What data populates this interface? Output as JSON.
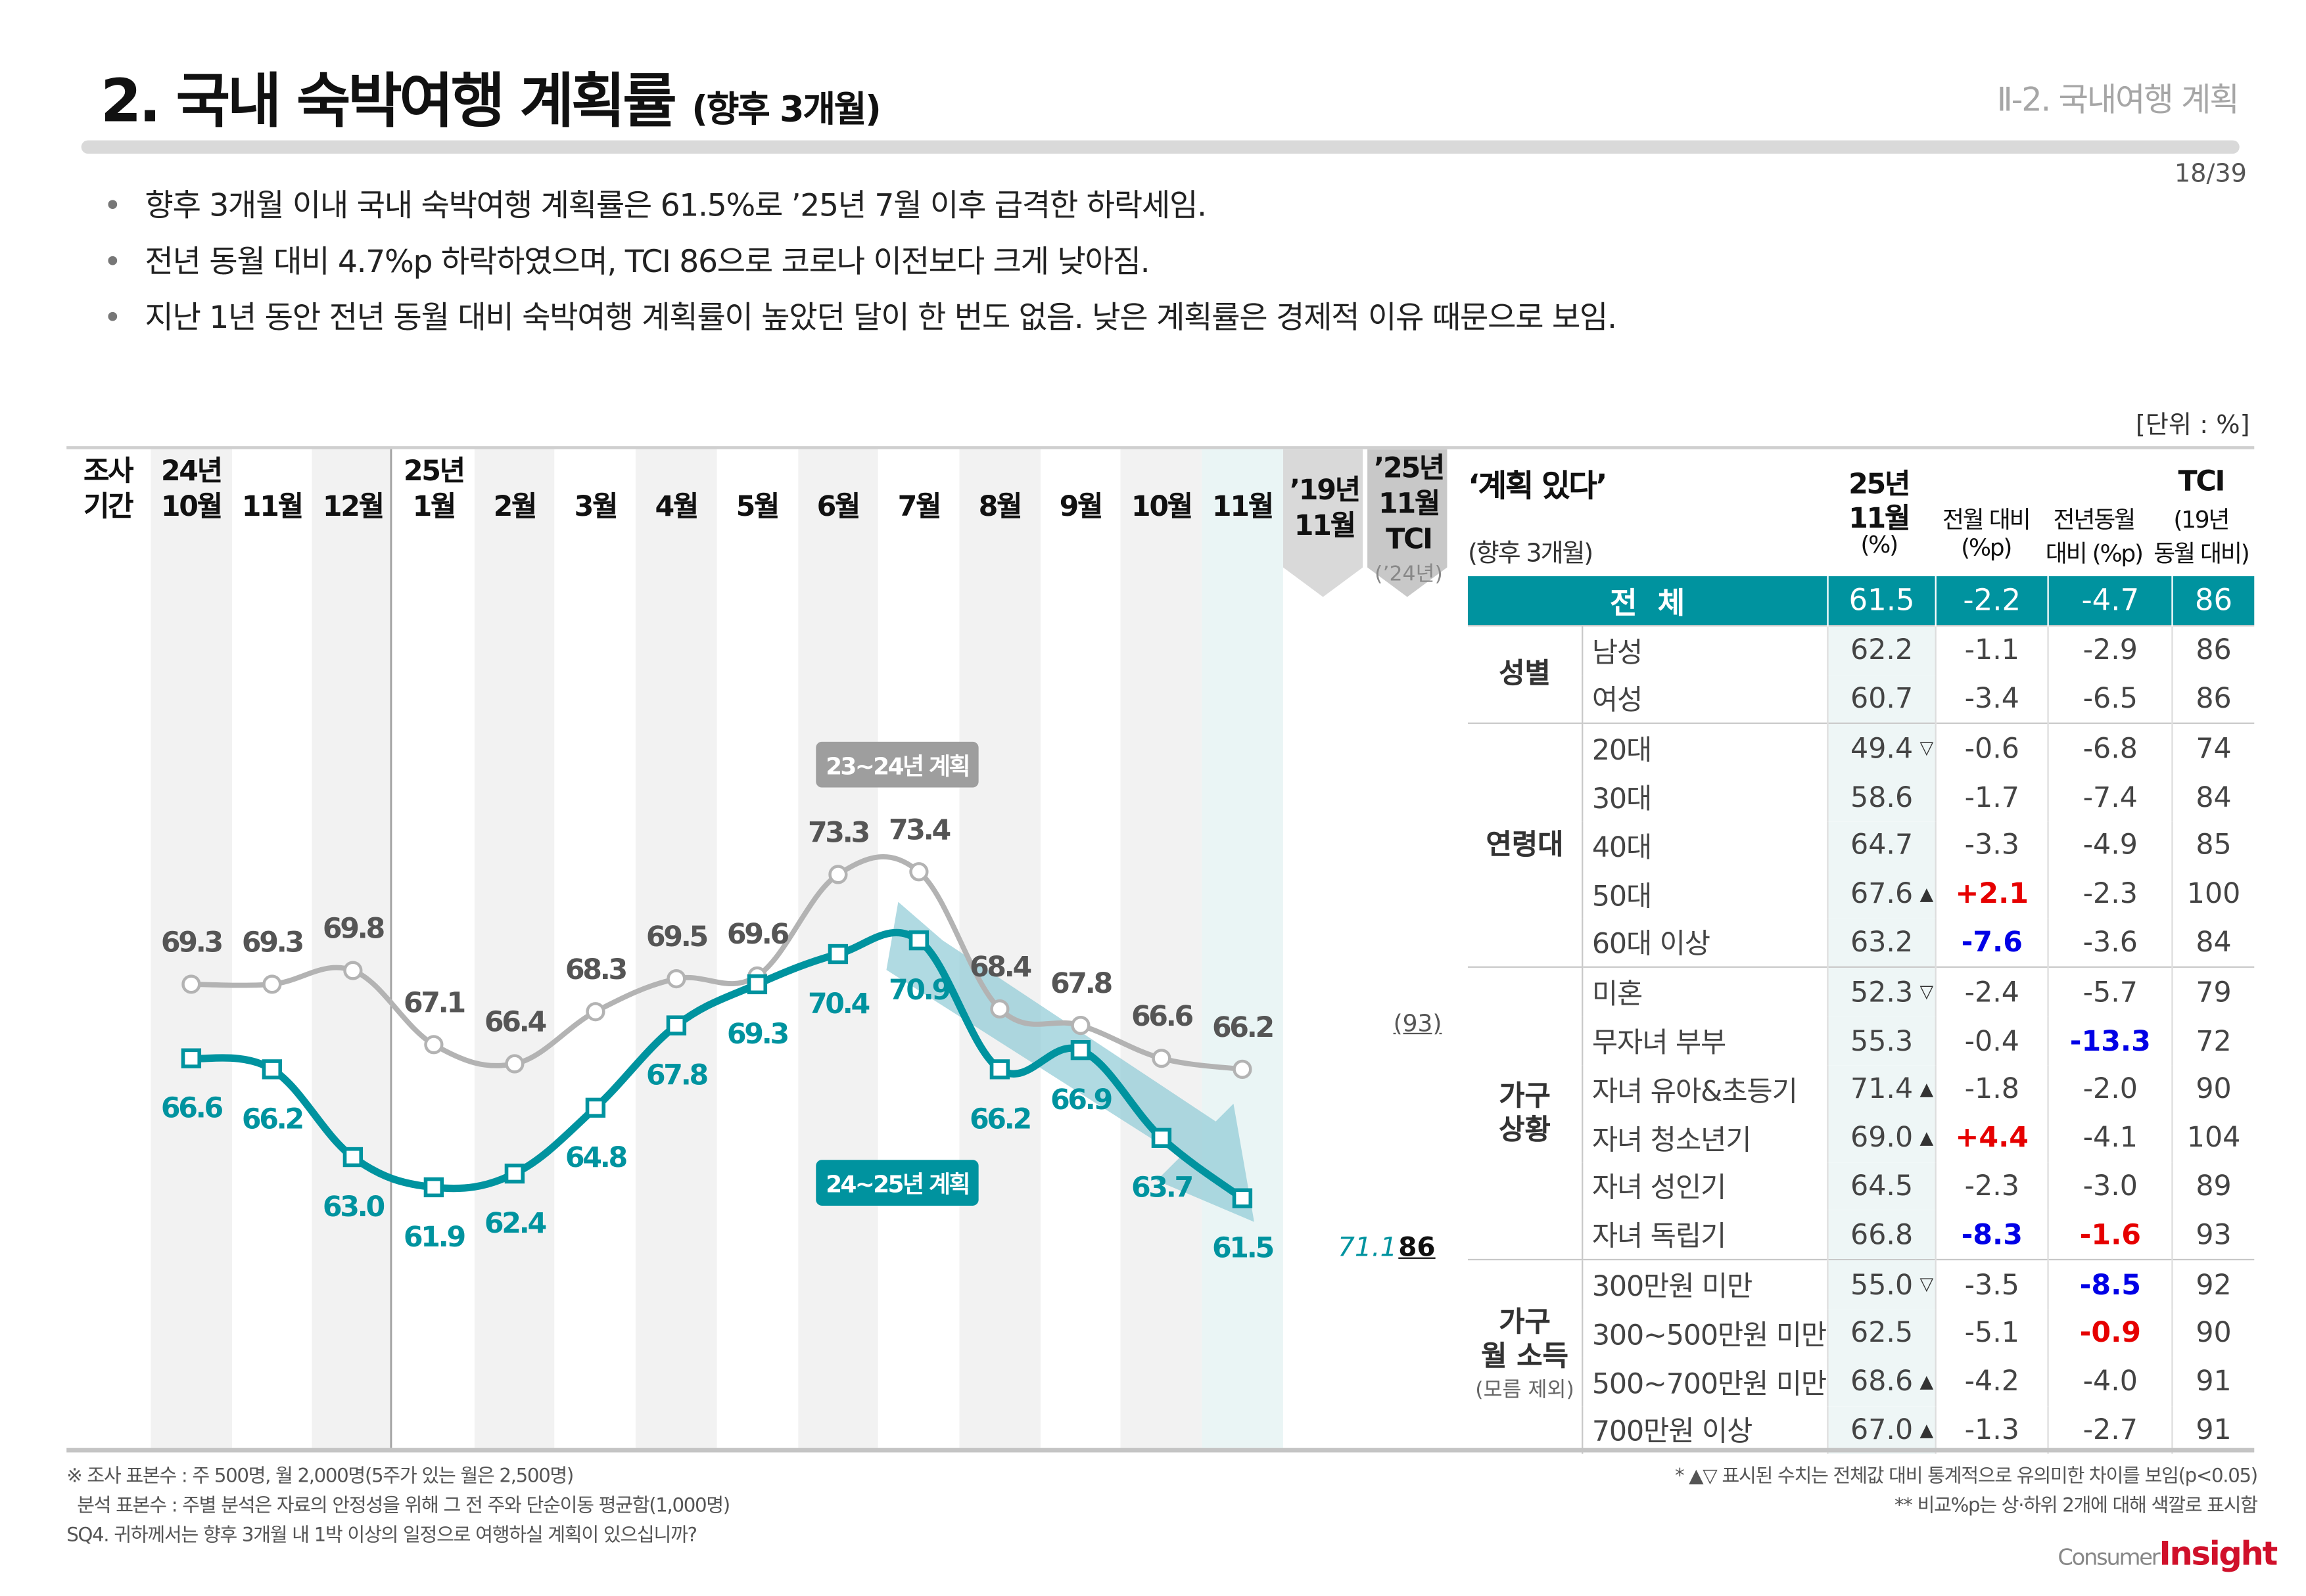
{
  "header": {
    "title": "2. 국내 숙박여행 계획률",
    "title_suffix": "(향후 3개월)",
    "section": "Ⅱ-2. 국내여행 계획",
    "page": "18/39"
  },
  "bullets": [
    "향후 3개월 이내 국내 숙박여행 계획률은 61.5%로 ’25년 7월 이후 급격한 하락세임.",
    "전년 동월 대비 4.7%p 하락하였으며, TCI 86으로 코로나 이전보다 크게 낮아짐.",
    "지난 1년 동안 전년 동월 대비 숙박여행 계획률이 높았던 달이 한 번도 없음. 낮은 계획률은 경제적 이유 때문으로 보임."
  ],
  "unit": "[단위 : %]",
  "colors": {
    "teal": "#00939f",
    "gray_line": "#b3b3b3",
    "red": "#e60000",
    "blue": "#0000e6"
  },
  "chart_data": {
    "type": "line",
    "period_label": [
      "조사",
      "기간"
    ],
    "year_labels": [
      {
        "index": 0,
        "label": "24년"
      },
      {
        "index": 3,
        "label": "25년"
      }
    ],
    "categories": [
      "10월",
      "11월",
      "12월",
      "1월",
      "2월",
      "3월",
      "4월",
      "5월",
      "6월",
      "7월",
      "8월",
      "9월",
      "10월",
      "11월"
    ],
    "series": [
      {
        "name": "23~24년 계획",
        "color": "#b3b3b3",
        "marker": "circle",
        "values": [
          69.3,
          69.3,
          69.8,
          67.1,
          66.4,
          68.3,
          69.5,
          69.6,
          73.3,
          73.4,
          68.4,
          67.8,
          66.6,
          66.2
        ]
      },
      {
        "name": "24~25년 계획",
        "color": "#00939f",
        "marker": "square",
        "values": [
          66.6,
          66.2,
          63.0,
          61.9,
          62.4,
          64.8,
          67.8,
          69.3,
          70.4,
          70.9,
          66.2,
          66.9,
          63.7,
          61.5
        ]
      }
    ],
    "ylim": [
      58,
      76
    ],
    "trend_arrow": {
      "from": "7월",
      "to": "11월"
    },
    "extra_columns": [
      {
        "header": [
          "’19년",
          "11월"
        ],
        "value": "71.1"
      },
      {
        "header": [
          "’25년",
          "11월",
          "TCI"
        ],
        "subheader": "(’24년)",
        "value": "86",
        "ref": "(93)"
      }
    ]
  },
  "table": {
    "title": "‘계획 있다’",
    "subtitle": "(향후 3개월)",
    "columns": [
      [
        "25년",
        "11월",
        "(%)"
      ],
      [
        "전월 대비",
        "(%p)"
      ],
      [
        "전년동월",
        "대비 (%p)"
      ],
      [
        "TCI",
        "(19년",
        "동월 대비)"
      ]
    ],
    "total": {
      "label": "전  체",
      "values": [
        "61.5",
        "-2.2",
        "-4.7",
        "86"
      ]
    },
    "groups": [
      {
        "label": [
          "성별"
        ],
        "rows": [
          {
            "label": "남성",
            "v": "62.2",
            "m": "",
            "mom": "-1.1",
            "yoy": "-2.9",
            "tci": "86"
          },
          {
            "label": "여성",
            "v": "60.7",
            "m": "",
            "mom": "-3.4",
            "yoy": "-6.5",
            "tci": "86"
          }
        ]
      },
      {
        "label": [
          "연령대"
        ],
        "rows": [
          {
            "label": "20대",
            "v": "49.4",
            "m": "▽",
            "mom": "-0.6",
            "yoy": "-6.8",
            "tci": "74"
          },
          {
            "label": "30대",
            "v": "58.6",
            "m": "",
            "mom": "-1.7",
            "yoy": "-7.4",
            "tci": "84"
          },
          {
            "label": "40대",
            "v": "64.7",
            "m": "",
            "mom": "-3.3",
            "yoy": "-4.9",
            "tci": "85"
          },
          {
            "label": "50대",
            "v": "67.6",
            "m": "▲",
            "mom": "+2.1",
            "mom_c": "red",
            "yoy": "-2.3",
            "tci": "100"
          },
          {
            "label": "60대 이상",
            "v": "63.2",
            "m": "",
            "mom": "-7.6",
            "mom_c": "blue",
            "yoy": "-3.6",
            "tci": "84"
          }
        ]
      },
      {
        "label": [
          "가구",
          "상황"
        ],
        "rows": [
          {
            "label": "미혼",
            "v": "52.3",
            "m": "▽",
            "mom": "-2.4",
            "yoy": "-5.7",
            "tci": "79"
          },
          {
            "label": "무자녀 부부",
            "v": "55.3",
            "m": "",
            "mom": "-0.4",
            "yoy": "-13.3",
            "yoy_c": "blue",
            "tci": "72"
          },
          {
            "label": "자녀 유아&초등기",
            "v": "71.4",
            "m": "▲",
            "mom": "-1.8",
            "yoy": "-2.0",
            "tci": "90"
          },
          {
            "label": "자녀 청소년기",
            "v": "69.0",
            "m": "▲",
            "mom": "+4.4",
            "mom_c": "red",
            "yoy": "-4.1",
            "tci": "104"
          },
          {
            "label": "자녀 성인기",
            "v": "64.5",
            "m": "",
            "mom": "-2.3",
            "yoy": "-3.0",
            "tci": "89"
          },
          {
            "label": "자녀 독립기",
            "v": "66.8",
            "m": "",
            "mom": "-8.3",
            "mom_c": "blue",
            "yoy": "-1.6",
            "yoy_c": "red",
            "tci": "93"
          }
        ]
      },
      {
        "label": [
          "가구",
          "월 소득"
        ],
        "sublabel": "(모름 제외)",
        "rows": [
          {
            "label": "300만원 미만",
            "v": "55.0",
            "m": "▽",
            "mom": "-3.5",
            "yoy": "-8.5",
            "yoy_c": "blue",
            "tci": "92"
          },
          {
            "label": "300~500만원 미만",
            "v": "62.5",
            "m": "",
            "mom": "-5.1",
            "yoy": "-0.9",
            "yoy_c": "red",
            "tci": "90"
          },
          {
            "label": "500~700만원 미만",
            "v": "68.6",
            "m": "▲",
            "mom": "-4.2",
            "yoy": "-4.0",
            "tci": "91"
          },
          {
            "label": "700만원 이상",
            "v": "67.0",
            "m": "▲",
            "mom": "-1.3",
            "yoy": "-2.7",
            "tci": "91"
          }
        ]
      }
    ]
  },
  "footnotes": {
    "left": [
      "※ 조사 표본수 : 주 500명, 월 2,000명(5주가 있는 월은 2,500명)",
      "  분석 표본수 : 주별 분석은 자료의 안정성을 위해 그 전 주와 단순이동 평균함(1,000명)",
      "SQ4. 귀하께서는 향후 3개월 내 1박 이상의 일정으로 여행하실 계획이 있으십니까?"
    ],
    "right": [
      "* ▲▽ 표시된 수치는 전체값 대비 통계적으로 유의미한 차이를 보임(p<0.05)",
      "** 비교%p는 상·하위 2개에 대해 색깔로 표시함"
    ]
  },
  "logo": {
    "text1": "Consumer",
    "text2": "Insight"
  }
}
